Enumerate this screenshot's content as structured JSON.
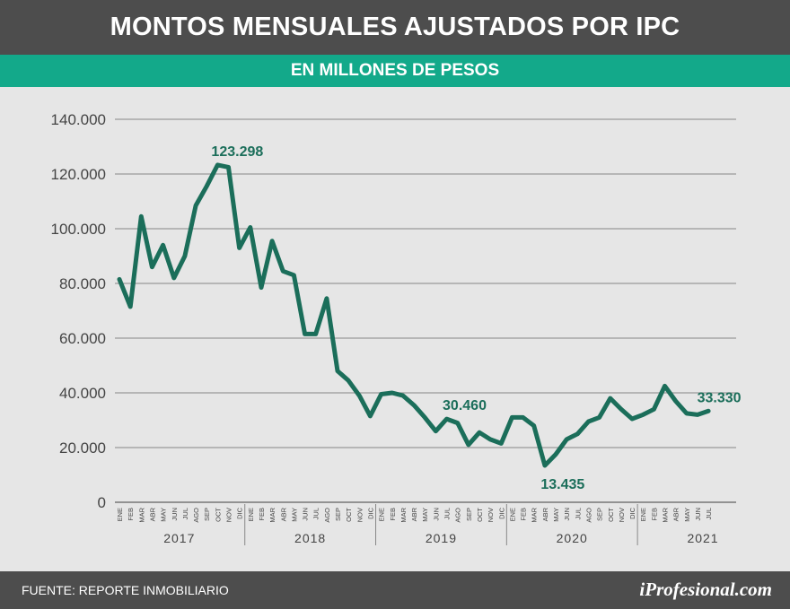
{
  "header": {
    "title": "MONTOS MENSUALES AJUSTADOS POR IPC",
    "subtitle": "EN MILLONES DE PESOS"
  },
  "footer": {
    "source": "FUENTE: REPORTE INMOBILIARIO",
    "brand_prefix": "i",
    "brand_rest": "Profesional.com"
  },
  "colors": {
    "line": "#1b6e5a",
    "label": "#1b6e5a",
    "grid": "#9a9a9a",
    "axis_text": "#444444",
    "title_bg": "#4d4d4d",
    "subtitle_bg": "#13a98a",
    "background": "#e6e6e6"
  },
  "chart_data": {
    "type": "line",
    "title": "MONTOS MENSUALES AJUSTADOS POR IPC",
    "subtitle": "EN MILLONES DE PESOS",
    "ylim": [
      0,
      140000
    ],
    "yticks": [
      0,
      20000,
      40000,
      60000,
      80000,
      100000,
      120000,
      140000
    ],
    "ytick_labels": [
      "0",
      "20.000",
      "40.000",
      "60.000",
      "80.000",
      "100.000",
      "120.000",
      "140.000"
    ],
    "grid": "horizontal",
    "month_labels": [
      "ENE",
      "FEB",
      "MAR",
      "ABR",
      "MAY",
      "JUN",
      "JUL",
      "AGO",
      "SEP",
      "OCT",
      "NOV",
      "DIC"
    ],
    "years": [
      {
        "year": "2017",
        "months": 12
      },
      {
        "year": "2018",
        "months": 12
      },
      {
        "year": "2019",
        "months": 12
      },
      {
        "year": "2020",
        "months": 12
      },
      {
        "year": "2021",
        "months": 7
      }
    ],
    "series": [
      {
        "values": [
          81500,
          71500,
          104500,
          86000,
          94000,
          82000,
          90000,
          108500,
          115500,
          123298,
          122500,
          93000,
          100500,
          78500,
          95500,
          84500,
          83000,
          61500,
          61500,
          74500,
          48000,
          44500,
          39000,
          31500,
          39500,
          40000,
          39000,
          35500,
          31000,
          26000,
          30460,
          29000,
          21000,
          25500,
          23000,
          21500,
          31000,
          31000,
          28000,
          13435,
          17500,
          23000,
          25000,
          29500,
          31000,
          38000,
          34000,
          30500,
          32000,
          34000,
          42500,
          37000,
          32500,
          32000,
          33330
        ]
      }
    ],
    "annotations": [
      {
        "index": 9,
        "text": "123.298",
        "position": "above"
      },
      {
        "index": 30,
        "text": "30.460",
        "position": "above"
      },
      {
        "index": 39,
        "text": "13.435",
        "position": "below"
      },
      {
        "index": 54,
        "text": "33.330",
        "position": "above"
      }
    ]
  }
}
